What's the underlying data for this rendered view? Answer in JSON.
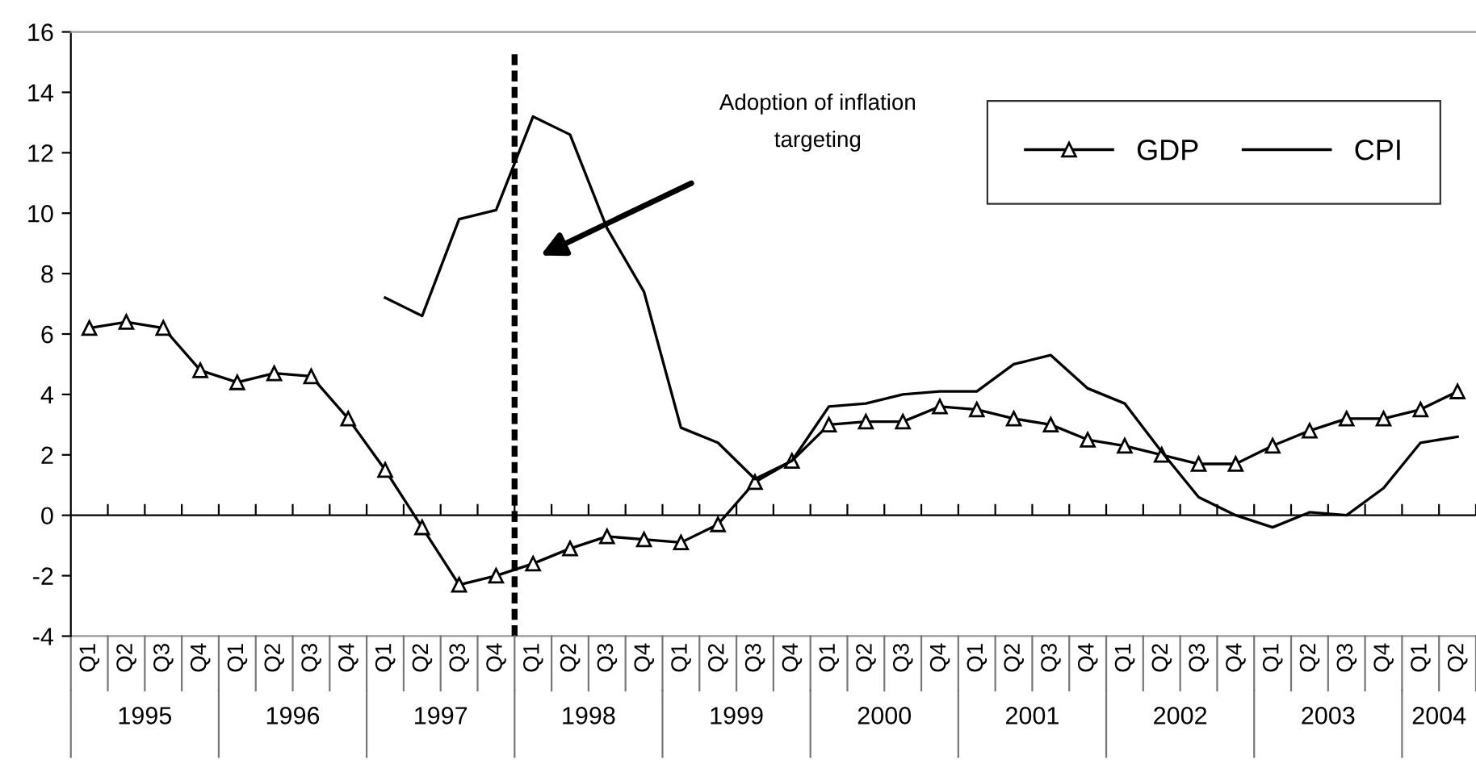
{
  "chart_data": {
    "type": "line",
    "categories": [
      "Q1",
      "Q2",
      "Q3",
      "Q4",
      "Q1",
      "Q2",
      "Q3",
      "Q4",
      "Q1",
      "Q2",
      "Q3",
      "Q4",
      "Q1",
      "Q2",
      "Q3",
      "Q4",
      "Q1",
      "Q2",
      "Q3",
      "Q4",
      "Q1",
      "Q2",
      "Q3",
      "Q4",
      "Q1",
      "Q2",
      "Q3",
      "Q4",
      "Q1",
      "Q2",
      "Q3",
      "Q4",
      "Q1",
      "Q2",
      "Q3",
      "Q4",
      "Q1",
      "Q2"
    ],
    "series": [
      {
        "name": "GDP",
        "color": "#000000",
        "marker": "triangle",
        "values": [
          6.2,
          6.4,
          6.2,
          4.8,
          4.4,
          4.7,
          4.6,
          3.2,
          1.5,
          -0.4,
          -2.3,
          -2.0,
          -1.6,
          -1.1,
          -0.7,
          -0.8,
          -0.9,
          -0.3,
          1.1,
          1.8,
          3.0,
          3.1,
          3.1,
          3.6,
          3.5,
          3.2,
          3.0,
          2.5,
          2.3,
          2.0,
          1.7,
          1.7,
          2.3,
          2.8,
          3.2,
          3.2,
          3.5,
          4.1
        ]
      },
      {
        "name": "CPI",
        "color": "#000000",
        "marker": "none",
        "values": [
          null,
          null,
          null,
          null,
          null,
          null,
          null,
          null,
          7.2,
          6.6,
          9.8,
          10.1,
          13.2,
          12.6,
          9.5,
          7.4,
          2.9,
          2.4,
          1.2,
          1.8,
          3.6,
          3.7,
          4.0,
          4.1,
          4.1,
          5.0,
          5.3,
          4.2,
          3.7,
          2.1,
          0.6,
          0.0,
          -0.4,
          0.1,
          0.0,
          0.9,
          2.4,
          2.6
        ]
      }
    ],
    "ylim": [
      -4,
      16
    ],
    "yticks": [
      -4,
      -2,
      0,
      2,
      4,
      6,
      8,
      10,
      12,
      14,
      16
    ],
    "annotations": [
      "Adoption of inflation\ntargeting",
      "1995",
      "1996",
      "1997",
      "1998",
      "1999",
      "2000",
      "2001",
      "2002",
      "2003",
      "2004"
    ],
    "legend": "top right"
  }
}
